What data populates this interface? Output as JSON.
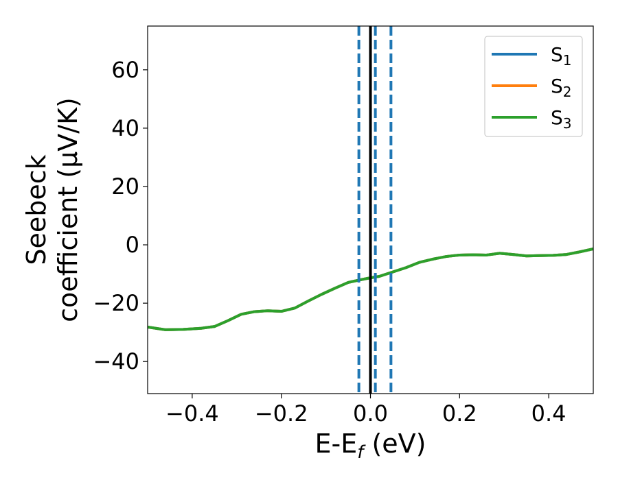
{
  "chart_data": {
    "type": "line",
    "xlabel": "E-E",
    "xlabel_sub": "f",
    "xlabel_unit": " (eV)",
    "ylabel_line1": "Seebeck",
    "ylabel_line2": "coefficient  (μV/K)",
    "xlim": [
      -0.5,
      0.5
    ],
    "ylim": [
      -51,
      75
    ],
    "xticks": [
      -0.4,
      -0.2,
      0.0,
      0.2,
      0.4
    ],
    "xtick_labels": [
      "−0.4",
      "−0.2",
      "0.0",
      "0.2",
      "0.4"
    ],
    "yticks": [
      -40,
      -20,
      0,
      20,
      40,
      60
    ],
    "ytick_labels": [
      "−40",
      "−20",
      "0",
      "20",
      "40",
      "60"
    ],
    "grid": false,
    "legend_position": "top-right",
    "series": [
      {
        "name": "S",
        "sub": "1",
        "color": "#1f77b4",
        "x": [
          -0.5,
          -0.46,
          -0.42,
          -0.38,
          -0.35,
          -0.32,
          -0.29,
          -0.26,
          -0.23,
          -0.2,
          -0.17,
          -0.14,
          -0.11,
          -0.08,
          -0.05,
          -0.02,
          0.0,
          0.02,
          0.05,
          0.08,
          0.11,
          0.14,
          0.17,
          0.2,
          0.23,
          0.26,
          0.29,
          0.32,
          0.35,
          0.38,
          0.41,
          0.44,
          0.47,
          0.5
        ],
        "y": [
          -28.2,
          -29.1,
          -29.0,
          -28.6,
          -28.0,
          -26.0,
          -23.8,
          -22.9,
          -22.6,
          -22.8,
          -21.7,
          -19.3,
          -17.0,
          -14.9,
          -12.9,
          -11.9,
          -11.3,
          -10.8,
          -9.3,
          -7.8,
          -6.0,
          -4.9,
          -4.0,
          -3.5,
          -3.4,
          -3.5,
          -2.9,
          -3.3,
          -3.8,
          -3.7,
          -3.6,
          -3.3,
          -2.4,
          -1.4
        ]
      },
      {
        "name": "S",
        "sub": "2",
        "color": "#ff7f0e",
        "x": [
          -0.5,
          -0.46,
          -0.42,
          -0.38,
          -0.35,
          -0.32,
          -0.29,
          -0.26,
          -0.23,
          -0.2,
          -0.17,
          -0.14,
          -0.11,
          -0.08,
          -0.05,
          -0.02,
          0.0,
          0.02,
          0.05,
          0.08,
          0.11,
          0.14,
          0.17,
          0.2,
          0.23,
          0.26,
          0.29,
          0.32,
          0.35,
          0.38,
          0.41,
          0.44,
          0.47,
          0.5
        ],
        "y": [
          -28.2,
          -29.1,
          -29.0,
          -28.6,
          -28.0,
          -26.0,
          -23.8,
          -22.9,
          -22.6,
          -22.8,
          -21.7,
          -19.3,
          -17.0,
          -14.9,
          -12.9,
          -11.9,
          -11.3,
          -10.8,
          -9.3,
          -7.8,
          -6.0,
          -4.9,
          -4.0,
          -3.5,
          -3.4,
          -3.5,
          -2.9,
          -3.3,
          -3.8,
          -3.7,
          -3.6,
          -3.3,
          -2.4,
          -1.4
        ]
      },
      {
        "name": "S",
        "sub": "3",
        "color": "#2ca02c",
        "x": [
          -0.5,
          -0.46,
          -0.42,
          -0.38,
          -0.35,
          -0.32,
          -0.29,
          -0.26,
          -0.23,
          -0.2,
          -0.17,
          -0.14,
          -0.11,
          -0.08,
          -0.05,
          -0.02,
          0.0,
          0.02,
          0.05,
          0.08,
          0.11,
          0.14,
          0.17,
          0.2,
          0.23,
          0.26,
          0.29,
          0.32,
          0.35,
          0.38,
          0.41,
          0.44,
          0.47,
          0.5
        ],
        "y": [
          -28.2,
          -29.1,
          -29.0,
          -28.6,
          -28.0,
          -26.0,
          -23.8,
          -22.9,
          -22.6,
          -22.8,
          -21.7,
          -19.3,
          -17.0,
          -14.9,
          -12.9,
          -11.9,
          -11.3,
          -10.8,
          -9.3,
          -7.8,
          -6.0,
          -4.9,
          -4.0,
          -3.5,
          -3.4,
          -3.5,
          -2.9,
          -3.3,
          -3.8,
          -3.7,
          -3.6,
          -3.3,
          -2.4,
          -1.4
        ]
      }
    ],
    "vlines": [
      {
        "x": 0.0,
        "style": "solid",
        "color": "#000000"
      },
      {
        "x": -0.026,
        "style": "dashed",
        "color": "#1f77b4"
      },
      {
        "x": 0.011,
        "style": "dashed",
        "color": "#1f77b4"
      },
      {
        "x": 0.046,
        "style": "dashed",
        "color": "#1f77b4"
      }
    ]
  }
}
